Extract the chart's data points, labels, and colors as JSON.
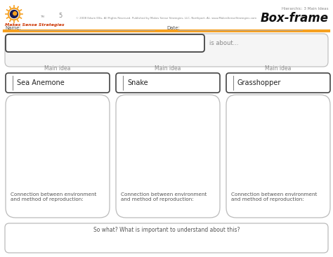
{
  "title": "Box-frame",
  "hierarchy_label": "Hierarchic: 3 Main Ideas",
  "copyright": "© 2008 Edwin Ellis, All Rights Reserved. Published by Makes Sense Strategies, LLC, Northport, AL. www.MakesSenseStrategies.com",
  "brand": "Makes Sense Strategies",
  "name_label": "Name:",
  "date_label": "Date:",
  "is_about": "is about...",
  "so_what": "So what? What is important to understand about this?",
  "main_idea_label": "Main idea",
  "columns": [
    "Sea Anemone",
    "Snake",
    "Grasshopper"
  ],
  "connection_text": "Connection between environment\nand method of reproduction:",
  "bg_color": "#ffffff",
  "box_dark_color": "#444444",
  "box_light_color": "#bbbbbb",
  "brand_color": "#cc3300",
  "orange_color": "#f5a020",
  "title_color": "#111111",
  "small_text_color": "#888888",
  "name_date_color": "#555555",
  "main_idea_color": "#888888",
  "body_text_color": "#555555",
  "accent_line_color": "#f5a020"
}
